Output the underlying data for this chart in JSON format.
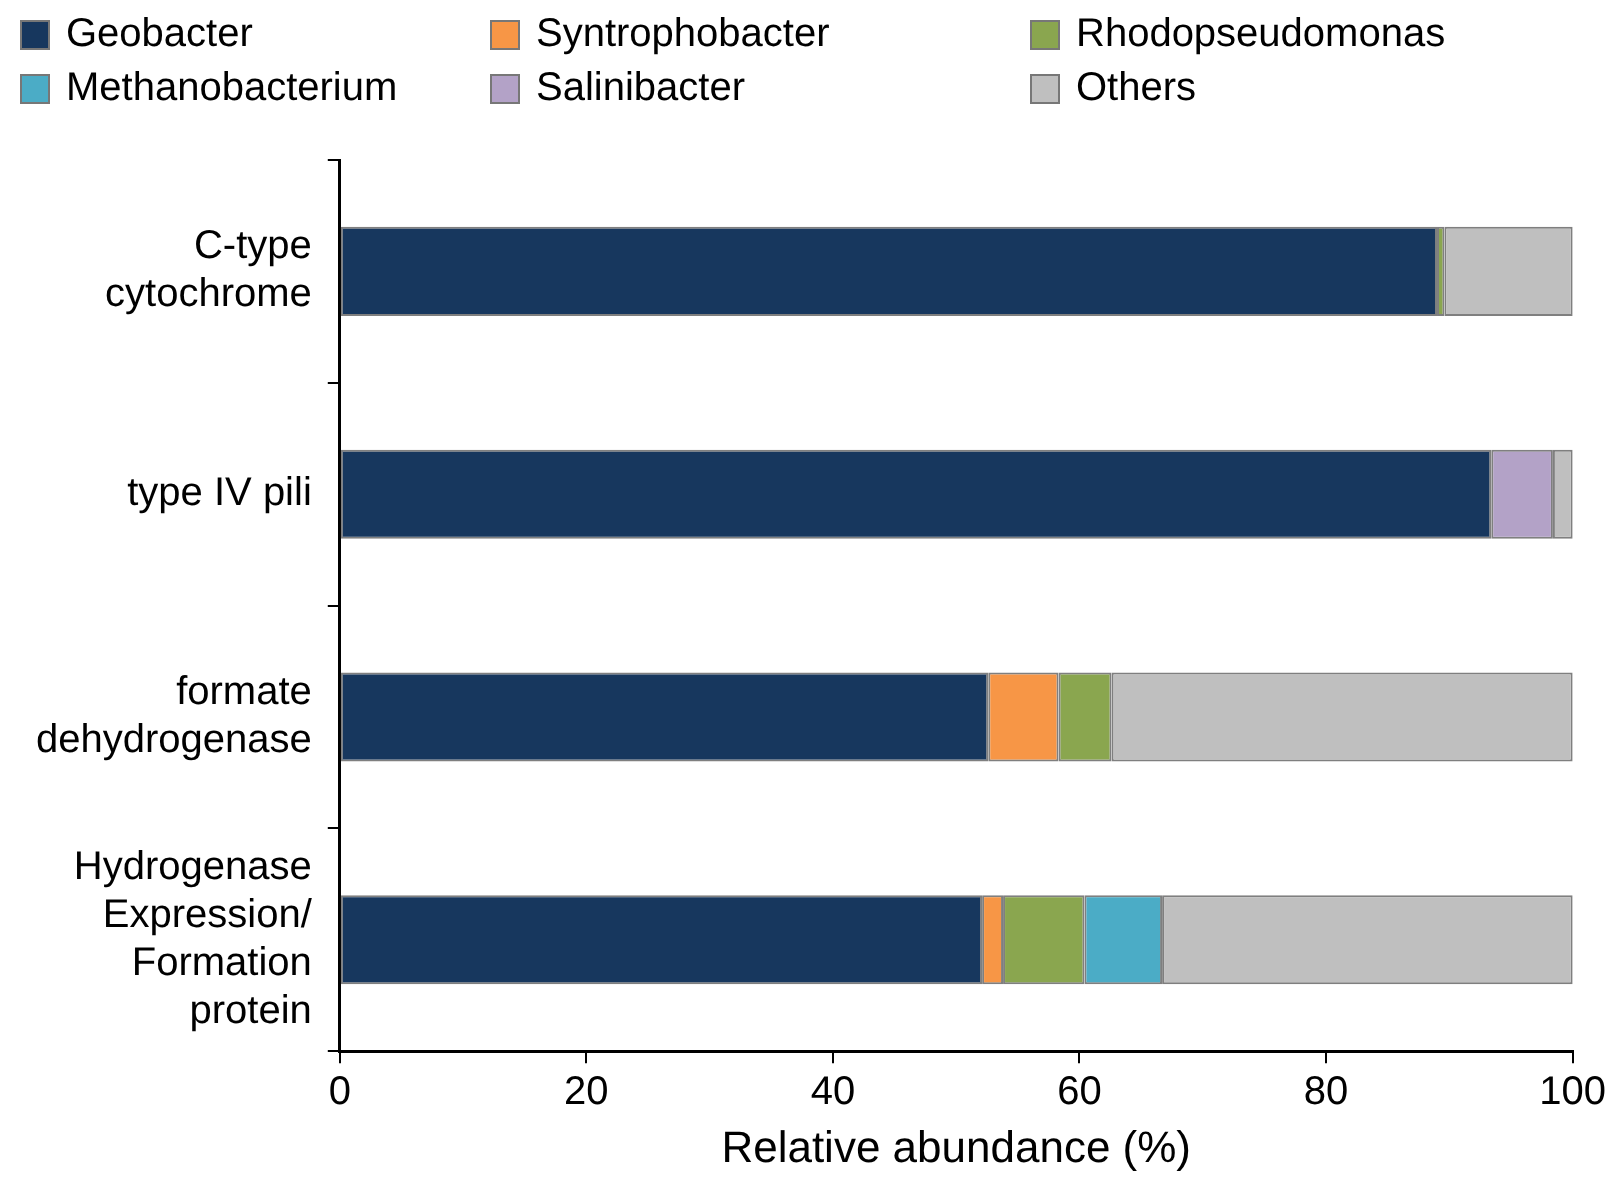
{
  "chart_data": {
    "type": "bar",
    "orientation": "horizontal",
    "stacked": true,
    "xlabel": "Relative abundance (%)",
    "categories": [
      "C-type cytochrome",
      "type IV pili",
      "formate dehydrogenase",
      "Hydrogenase Expression/ Formation protein"
    ],
    "series": [
      {
        "name": "Geobacter",
        "color": "#17375e",
        "values": [
          89.0,
          93.4,
          52.6,
          52.1
        ]
      },
      {
        "name": "Syntrophobacter",
        "color": "#f79646",
        "values": [
          0,
          0,
          5.7,
          1.7
        ]
      },
      {
        "name": "Rhodopseudomonas",
        "color": "#8aa64f",
        "values": [
          0.6,
          0,
          4.3,
          6.6
        ]
      },
      {
        "name": "Methanobacterium",
        "color": "#4bacc6",
        "values": [
          0,
          0,
          0,
          6.3
        ]
      },
      {
        "name": "Salinibacter",
        "color": "#b3a2c7",
        "values": [
          0,
          5.0,
          0,
          0
        ]
      },
      {
        "name": "Others",
        "color": "#bfbfbf",
        "values": [
          10.4,
          1.6,
          37.4,
          33.3
        ]
      }
    ],
    "xlim": [
      0,
      100
    ],
    "xticks": [
      0,
      20,
      40,
      60,
      80,
      100
    ],
    "grid": false,
    "legend": "top"
  }
}
